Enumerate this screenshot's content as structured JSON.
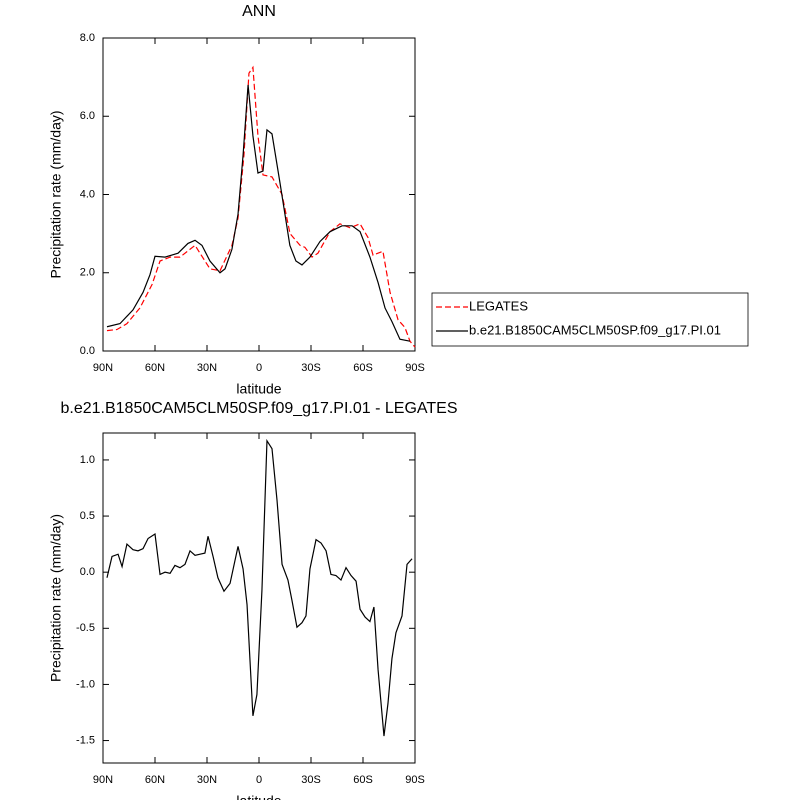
{
  "chart_data": [
    {
      "type": "line",
      "title": "ANN",
      "xlabel": "latitude",
      "ylabel": "Precipitation rate (mm/day)",
      "xlim": [
        90,
        -90
      ],
      "xticks": [
        {
          "value": 90,
          "label": "90N"
        },
        {
          "value": 60,
          "label": "60N"
        },
        {
          "value": 30,
          "label": "30N"
        },
        0,
        {
          "value": -30,
          "label": "30S"
        },
        {
          "value": -60,
          "label": "60S"
        },
        {
          "value": -90,
          "label": "90S"
        }
      ],
      "ylim": [
        0,
        8
      ],
      "yticks": [
        {
          "value": 0,
          "label": "0.0"
        },
        {
          "value": 2,
          "label": "2.0"
        },
        {
          "value": 4,
          "label": "4.0"
        },
        {
          "value": 6,
          "label": "6.0"
        },
        {
          "value": 8,
          "label": "8.0"
        }
      ],
      "legend": "right",
      "series": [
        {
          "name": "LEGATES",
          "color": "#ff0000",
          "style": "dashed",
          "x": [
            87.7,
            81.9,
            76.2,
            68.7,
            61.7,
            57.1,
            51.3,
            45.6,
            36.9,
            28.3,
            22.5,
            15.6,
            12.1,
            8.7,
            5.8,
            3.5,
            0.6,
            -2.3,
            -7.5,
            -13.3,
            -17.9,
            -23.7,
            -26.5,
            -30.6,
            -34.0,
            -41.0,
            -46.7,
            -52.5,
            -58.3,
            -62.9,
            -65.8,
            -71.5,
            -75.6,
            -80.2,
            -84.2,
            -87.1,
            -90.0
          ],
          "values": [
            0.52,
            0.55,
            0.7,
            1.1,
            1.7,
            2.3,
            2.4,
            2.4,
            2.7,
            2.1,
            2.05,
            2.7,
            3.4,
            5.0,
            7.1,
            7.25,
            5.5,
            4.5,
            4.45,
            4.0,
            3.0,
            2.7,
            2.65,
            2.4,
            2.5,
            3.05,
            3.25,
            3.15,
            3.25,
            2.9,
            2.45,
            2.55,
            1.5,
            0.8,
            0.6,
            0.25,
            0.1
          ]
        },
        {
          "name": "b.e21.B1850CAM5CLM50SP.f09_g17.PI.01",
          "color": "#000000",
          "style": "solid",
          "x": [
            87.7,
            80.2,
            72.7,
            66.9,
            62.9,
            60.0,
            54.2,
            46.7,
            41.0,
            36.9,
            32.9,
            28.3,
            22.5,
            19.6,
            15.6,
            12.1,
            9.2,
            6.3,
            3.5,
            0.6,
            -2.3,
            -4.6,
            -7.5,
            -12.1,
            -17.8,
            -21.3,
            -24.8,
            -29.4,
            -35.2,
            -41.0,
            -47.9,
            -53.7,
            -58.3,
            -64.0,
            -68.7,
            -72.7,
            -76.7,
            -81.3,
            -87.1
          ],
          "values": [
            0.62,
            0.7,
            1.05,
            1.5,
            1.95,
            2.42,
            2.4,
            2.5,
            2.75,
            2.83,
            2.7,
            2.3,
            2.0,
            2.1,
            2.6,
            3.5,
            5.0,
            6.8,
            5.5,
            4.55,
            4.6,
            5.65,
            5.55,
            4.3,
            2.7,
            2.3,
            2.2,
            2.4,
            2.8,
            3.05,
            3.2,
            3.2,
            3.05,
            2.4,
            1.75,
            1.1,
            0.75,
            0.3,
            0.25
          ]
        }
      ]
    },
    {
      "type": "line",
      "title": "b.e21.B1850CAM5CLM50SP.f09_g17.PI.01 - LEGATES",
      "xlabel": "latitude",
      "ylabel": "Precipitation rate (mm/day)",
      "xlim": [
        90,
        -90
      ],
      "xticks": [
        {
          "value": 90,
          "label": "90N"
        },
        {
          "value": 60,
          "label": "60N"
        },
        {
          "value": 30,
          "label": "30N"
        },
        0,
        {
          "value": -30,
          "label": "30S"
        },
        {
          "value": -60,
          "label": "60S"
        },
        {
          "value": -90,
          "label": "90S"
        }
      ],
      "ylim": [
        -1.7,
        1.24
      ],
      "yticks": [
        {
          "value": 1,
          "label": "1.0"
        },
        {
          "value": 0.5,
          "label": "0.5"
        },
        {
          "value": 0,
          "label": "0.0"
        },
        {
          "value": -0.5,
          "label": "-0.5"
        },
        {
          "value": -1,
          "label": "-1.0"
        },
        {
          "value": -1.5,
          "label": "-1.5"
        }
      ],
      "series": [
        {
          "color": "#000000",
          "style": "solid",
          "x": [
            87.7,
            84.8,
            81.3,
            79.0,
            76.2,
            72.7,
            69.8,
            66.9,
            64.0,
            60.0,
            57.1,
            54.2,
            51.3,
            48.5,
            45.6,
            42.7,
            39.8,
            36.9,
            34.0,
            31.2,
            29.4,
            26.5,
            23.7,
            20.2,
            16.7,
            12.1,
            9.2,
            6.9,
            3.5,
            1.2,
            -1.7,
            -4.6,
            -7.5,
            -10.4,
            -13.3,
            -16.7,
            -19.0,
            -21.9,
            -24.8,
            -27.1,
            -29.4,
            -32.9,
            -35.8,
            -38.7,
            -41.5,
            -44.4,
            -47.3,
            -50.2,
            -53.1,
            -56.0,
            -58.3,
            -61.2,
            -64.0,
            -66.3,
            -68.7,
            -72.1,
            -74.4,
            -76.7,
            -79.0,
            -82.5,
            -85.4,
            -88.3
          ],
          "values": [
            -0.05,
            0.14,
            0.16,
            0.05,
            0.25,
            0.2,
            0.19,
            0.21,
            0.3,
            0.34,
            -0.02,
            0.0,
            -0.01,
            0.06,
            0.04,
            0.07,
            0.19,
            0.15,
            0.16,
            0.17,
            0.32,
            0.14,
            -0.05,
            -0.17,
            -0.1,
            0.23,
            0.03,
            -0.29,
            -1.28,
            -1.09,
            -0.16,
            1.17,
            1.1,
            0.64,
            0.07,
            -0.07,
            -0.25,
            -0.49,
            -0.45,
            -0.39,
            0.03,
            0.29,
            0.26,
            0.19,
            -0.02,
            -0.03,
            -0.07,
            0.04,
            -0.03,
            -0.08,
            -0.33,
            -0.4,
            -0.44,
            -0.31,
            -0.87,
            -1.46,
            -1.17,
            -0.77,
            -0.54,
            -0.39,
            0.07,
            0.12
          ]
        }
      ]
    }
  ]
}
